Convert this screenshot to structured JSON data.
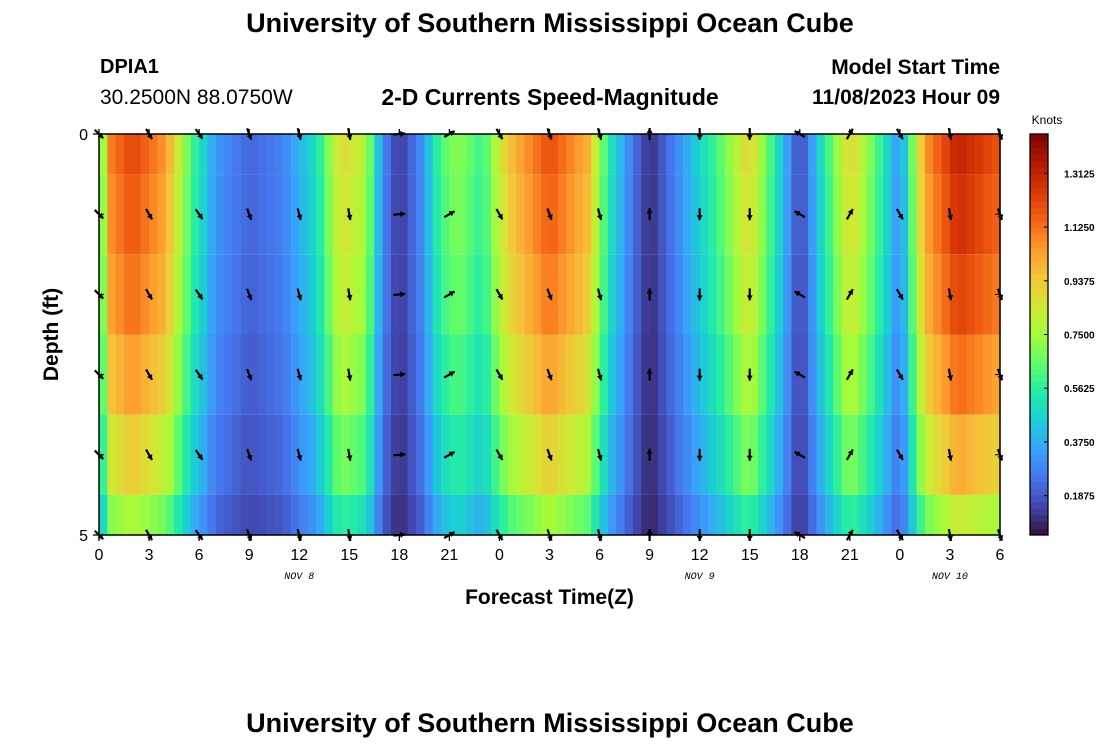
{
  "header": {
    "title": "University of Southern Mississippi Ocean Cube",
    "station_id": "DPIA1",
    "station_coords": "30.2500N  88.0750W",
    "subtitle": "2-D Currents Speed-Magnitude",
    "model_start_label": "Model Start Time",
    "model_start_value": "11/08/2023 Hour 09"
  },
  "footer": {
    "title": "University of Southern Mississippi Ocean Cube"
  },
  "colors": {
    "background": "#ffffff",
    "arrow": "#000000",
    "colormap": [
      "#30123b",
      "#4145ab",
      "#4675ed",
      "#39a2fc",
      "#1bcfd4",
      "#24eca6",
      "#61fc6c",
      "#a4fc3b",
      "#d1e834",
      "#f3c63a",
      "#fe9b2d",
      "#f36315",
      "#d93806",
      "#b11901",
      "#7a0402"
    ]
  },
  "chart_data": {
    "type": "heatmap",
    "title": "2-D Currents Speed-Magnitude",
    "xlabel": "Forecast Time(Z)",
    "ylabel": "Depth (ft)",
    "x_hours": [
      0,
      3,
      6,
      9,
      12,
      15,
      18,
      21,
      24,
      27,
      30,
      33,
      36,
      39,
      42,
      45,
      48,
      51,
      54
    ],
    "x_tick_labels": [
      "0",
      "3",
      "6",
      "9",
      "12",
      "15",
      "18",
      "21",
      "0",
      "3",
      "6",
      "9",
      "12",
      "15",
      "18",
      "21",
      "0",
      "3",
      "6"
    ],
    "date_labels": [
      {
        "text": "NOV 8",
        "hour": 12
      },
      {
        "text": "NOV 9",
        "hour": 36
      },
      {
        "text": "NOV 10",
        "hour": 51
      }
    ],
    "y_ticks": [
      0,
      5
    ],
    "y_tick_labels": [
      "0",
      "5"
    ],
    "ylim": [
      0,
      5
    ],
    "depth_levels": [
      0,
      1,
      2,
      3,
      4,
      5
    ],
    "colorbar": {
      "label": "Knots",
      "range": [
        0.05,
        1.45
      ],
      "ticks": [
        1.3125,
        1.125,
        0.9375,
        0.75,
        0.5625,
        0.375,
        0.1875
      ],
      "tick_labels": [
        "1.3125",
        "1.1250",
        "0.9375",
        "0.7500",
        "0.5625",
        "0.3750",
        "0.1875"
      ]
    },
    "speed_profile": [
      {
        "hour": 0,
        "speed": 0.55
      },
      {
        "hour": 0.7,
        "speed": 1.1
      },
      {
        "hour": 2,
        "speed": 1.22
      },
      {
        "hour": 4,
        "speed": 1.05
      },
      {
        "hour": 5.5,
        "speed": 0.62
      },
      {
        "hour": 7,
        "speed": 0.33
      },
      {
        "hour": 9,
        "speed": 0.22
      },
      {
        "hour": 11,
        "speed": 0.28
      },
      {
        "hour": 13,
        "speed": 0.5
      },
      {
        "hour": 14.5,
        "speed": 0.9
      },
      {
        "hour": 16,
        "speed": 0.78
      },
      {
        "hour": 17,
        "speed": 0.3
      },
      {
        "hour": 18,
        "speed": 0.12
      },
      {
        "hour": 19.3,
        "speed": 0.3
      },
      {
        "hour": 20.5,
        "speed": 0.62
      },
      {
        "hour": 21.5,
        "speed": 0.72
      },
      {
        "hour": 23,
        "speed": 0.58
      },
      {
        "hour": 24.5,
        "speed": 0.95
      },
      {
        "hour": 27,
        "speed": 1.2
      },
      {
        "hour": 29.3,
        "speed": 1.0
      },
      {
        "hour": 30.5,
        "speed": 0.55
      },
      {
        "hour": 32,
        "speed": 0.25
      },
      {
        "hour": 33,
        "speed": 0.1
      },
      {
        "hour": 34.5,
        "speed": 0.28
      },
      {
        "hour": 37,
        "speed": 0.6
      },
      {
        "hour": 39,
        "speed": 0.92
      },
      {
        "hour": 40.5,
        "speed": 0.55
      },
      {
        "hour": 42,
        "speed": 0.14
      },
      {
        "hour": 43.5,
        "speed": 0.55
      },
      {
        "hour": 45,
        "speed": 0.92
      },
      {
        "hour": 46.5,
        "speed": 0.65
      },
      {
        "hour": 48,
        "speed": 0.3
      },
      {
        "hour": 49.5,
        "speed": 1.05
      },
      {
        "hour": 51.5,
        "speed": 1.32
      },
      {
        "hour": 54,
        "speed": 1.18
      }
    ],
    "depth_attenuation": [
      1.0,
      0.97,
      0.93,
      0.86,
      0.76,
      0.62
    ],
    "arrow_depths": [
      0,
      1,
      2,
      3,
      4,
      5
    ],
    "arrow_hours": [
      0,
      3,
      6,
      9,
      12,
      15,
      18,
      21,
      24,
      27,
      30,
      33,
      36,
      39,
      42,
      45,
      48,
      51,
      54
    ],
    "arrow_directions_deg": [
      135,
      150,
      145,
      160,
      165,
      170,
      85,
      60,
      150,
      160,
      165,
      0,
      180,
      180,
      300,
      30,
      150,
      170,
      160
    ]
  }
}
